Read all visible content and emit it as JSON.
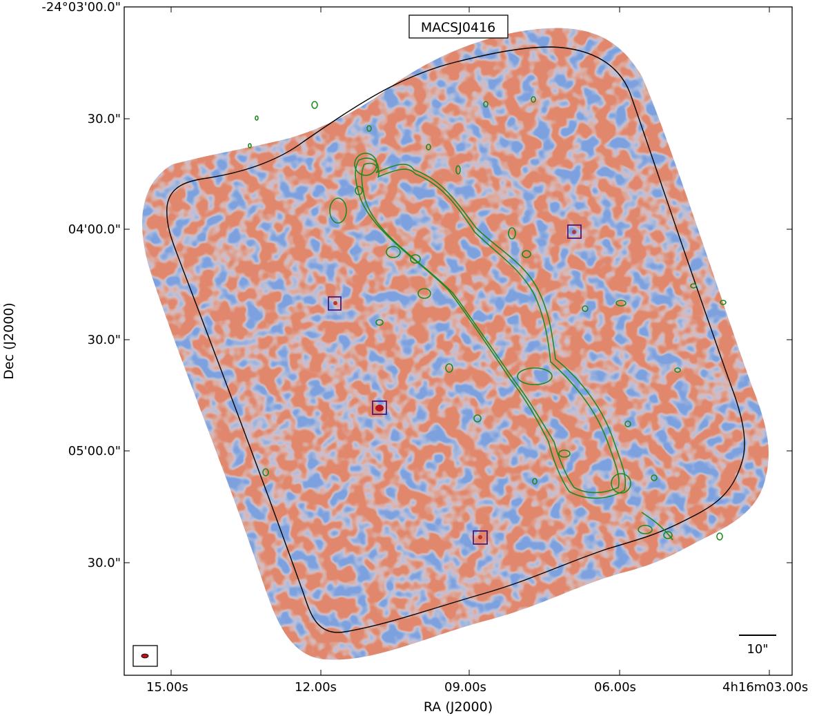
{
  "chart_data": {
    "type": "heatmap",
    "title": "MACSJ0416",
    "xlabel": "RA (J2000)",
    "ylabel": "Dec (J2000)",
    "x_ticks": [
      "15.00s",
      "12.00s",
      "09.00s",
      "06.00s",
      "4h16m03.00s"
    ],
    "y_ticks": [
      "-24°03'00.0\"",
      "30.0\"",
      "04'00.0\"",
      "30.0\"",
      "05'00.0\"",
      "30.0\""
    ],
    "x_range_seconds_ra": [
      15.7,
      2.9
    ],
    "y_range_arcsec_dec": [
      0,
      180
    ],
    "scale_bar_label": "10\"",
    "colormap": "diverging red-blue",
    "colors": {
      "positive": "#d9573a",
      "negative": "#4d7fd6",
      "background": "#d7d3d9",
      "contour": "#1f8a1f",
      "primary_beam": "#000000",
      "source_box": "#4b1a7a"
    },
    "detected_sources": [
      {
        "ra_s": 11.5,
        "dec_arcsec": 79
      },
      {
        "ra_s": 10.65,
        "dec_arcsec": 109
      },
      {
        "ra_s": 8.75,
        "dec_arcsec": 144
      },
      {
        "ra_s": 6.95,
        "dec_arcsec": 60
      }
    ],
    "beam_icon": "ellipse-beam-icon"
  }
}
